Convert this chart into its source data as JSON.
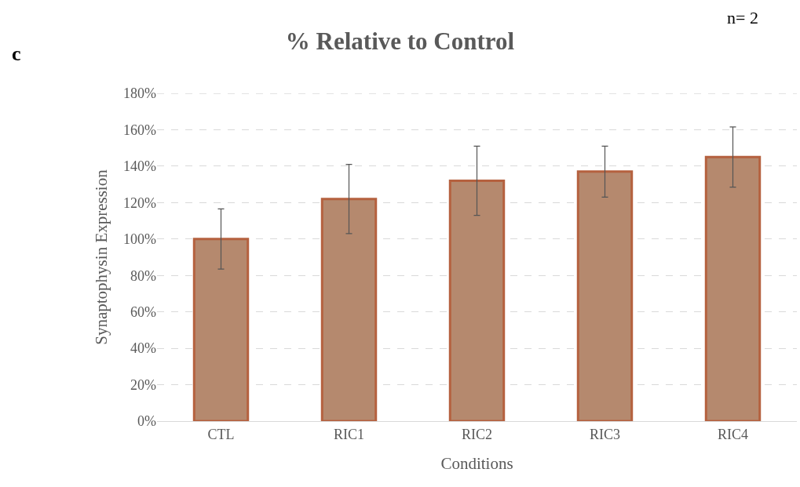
{
  "chart_data": {
    "type": "bar",
    "title": "% Relative to Control",
    "xlabel": "Conditions",
    "ylabel": "Synaptophysin Expression",
    "categories": [
      "CTL",
      "RIC1",
      "RIC2",
      "RIC3",
      "RIC4"
    ],
    "values": [
      100,
      122,
      132,
      137,
      145
    ],
    "errors": [
      16.5,
      19,
      19,
      14,
      16.5
    ],
    "color": "#b5896e",
    "ylim": [
      0,
      180
    ],
    "yticks": [
      {
        "value": 0,
        "label": "0%"
      },
      {
        "value": 20,
        "label": "20%"
      },
      {
        "value": 40,
        "label": "40%"
      },
      {
        "value": 60,
        "label": "60%"
      },
      {
        "value": 80,
        "label": "80%"
      },
      {
        "value": 100,
        "label": "100%"
      },
      {
        "value": 120,
        "label": "120%"
      },
      {
        "value": 140,
        "label": "140%"
      },
      {
        "value": 160,
        "label": "160%"
      },
      {
        "value": 180,
        "label": "180%"
      }
    ],
    "grid": "y",
    "annotations": [
      "c",
      "n= 2"
    ]
  }
}
